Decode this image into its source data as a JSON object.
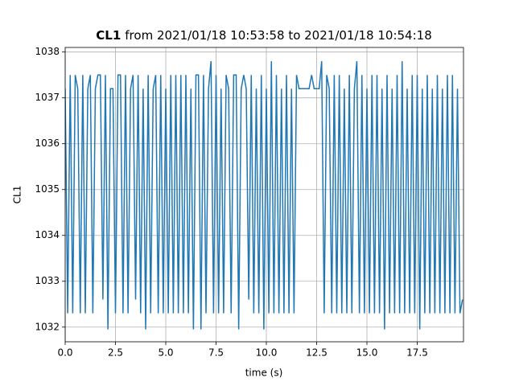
{
  "chart_data": {
    "type": "line",
    "title_bold": "CL1",
    "title_rest": "from 2021/01/18 10:53:58 to 2021/01/18 10:54:18",
    "xlabel": "time (s)",
    "ylabel": "CL1",
    "color": "#1f77b4",
    "grid": true,
    "xlim": [
      0,
      19.8
    ],
    "ylim": [
      1031.68,
      1038.1
    ],
    "xticks": [
      {
        "value": 0,
        "label": "0.0"
      },
      2.5,
      {
        "value": 5,
        "label": "5.0"
      },
      7.5,
      {
        "value": 10,
        "label": "10.0"
      },
      12.5,
      {
        "value": 15,
        "label": "15.0"
      },
      17.5
    ],
    "yticks": [
      1032,
      1033,
      1034,
      1035,
      1036,
      1037,
      1038
    ],
    "x": [
      0,
      0.125,
      0.25,
      0.375,
      0.5,
      0.625,
      0.75,
      0.875,
      1,
      1.125,
      1.25,
      1.375,
      1.5,
      1.625,
      1.75,
      1.875,
      2,
      2.125,
      2.25,
      2.375,
      2.5,
      2.625,
      2.75,
      2.875,
      3,
      3.125,
      3.25,
      3.375,
      3.5,
      3.625,
      3.75,
      3.875,
      4,
      4.125,
      4.25,
      4.375,
      4.5,
      4.625,
      4.75,
      4.875,
      5,
      5.125,
      5.25,
      5.375,
      5.5,
      5.625,
      5.75,
      5.875,
      6,
      6.125,
      6.25,
      6.375,
      6.5,
      6.625,
      6.75,
      6.875,
      7,
      7.125,
      7.25,
      7.375,
      7.5,
      7.625,
      7.75,
      7.875,
      8,
      8.125,
      8.25,
      8.375,
      8.5,
      8.625,
      8.75,
      8.875,
      9,
      9.125,
      9.25,
      9.375,
      9.5,
      9.625,
      9.75,
      9.875,
      10,
      10.125,
      10.25,
      10.375,
      10.5,
      10.625,
      10.75,
      10.875,
      11,
      11.125,
      11.25,
      11.375,
      11.5,
      11.625,
      11.75,
      11.875,
      12,
      12.125,
      12.25,
      12.375,
      12.5,
      12.625,
      12.75,
      12.875,
      13,
      13.125,
      13.25,
      13.375,
      13.5,
      13.625,
      13.75,
      13.875,
      14,
      14.125,
      14.25,
      14.375,
      14.5,
      14.625,
      14.75,
      14.875,
      15,
      15.125,
      15.25,
      15.375,
      15.5,
      15.625,
      15.75,
      15.875,
      16,
      16.125,
      16.25,
      16.375,
      16.5,
      16.625,
      16.75,
      16.875,
      17,
      17.125,
      17.25,
      17.375,
      17.5,
      17.625,
      17.75,
      17.875,
      18,
      18.125,
      18.25,
      18.375,
      18.5,
      18.625,
      18.75,
      18.875,
      19,
      19.125,
      19.25,
      19.375,
      19.5,
      19.625,
      19.75
    ],
    "values": [
      1037.2,
      1032.3,
      1037.5,
      1032.3,
      1037.5,
      1037.2,
      1032.3,
      1037.5,
      1032.3,
      1037.2,
      1037.5,
      1032.3,
      1037.2,
      1037.5,
      1037.5,
      1032.6,
      1037.5,
      1031.95,
      1037.2,
      1037.2,
      1032.3,
      1037.5,
      1037.5,
      1032.3,
      1037.5,
      1032.3,
      1037.2,
      1037.5,
      1032.6,
      1037.5,
      1032.3,
      1037.2,
      1031.95,
      1037.5,
      1032.3,
      1037.2,
      1037.5,
      1032.3,
      1037.5,
      1032.3,
      1037.2,
      1032.3,
      1037.5,
      1032.3,
      1037.5,
      1032.3,
      1037.5,
      1032.3,
      1037.5,
      1032.3,
      1037.2,
      1031.95,
      1037.5,
      1037.5,
      1031.95,
      1037.5,
      1032.3,
      1037.2,
      1037.8,
      1032.3,
      1037.5,
      1032.3,
      1037.2,
      1032.3,
      1037.5,
      1037.2,
      1032.3,
      1037.5,
      1037.5,
      1031.95,
      1037.2,
      1037.5,
      1037.2,
      1032.6,
      1037.5,
      1032.3,
      1037.2,
      1032.3,
      1037.5,
      1031.95,
      1037.2,
      1032.3,
      1037.8,
      1032.3,
      1037.5,
      1032.3,
      1037.2,
      1032.3,
      1037.5,
      1032.3,
      1037.2,
      1032.3,
      1037.5,
      1037.2,
      1037.2,
      1037.2,
      1037.2,
      1037.2,
      1037.5,
      1037.2,
      1037.2,
      1037.2,
      1037.8,
      1032.3,
      1037.5,
      1037.2,
      1032.3,
      1037.5,
      1032.3,
      1037.5,
      1032.3,
      1037.2,
      1032.3,
      1037.5,
      1032.3,
      1037.2,
      1037.8,
      1032.3,
      1037.5,
      1032.3,
      1037.2,
      1032.3,
      1037.5,
      1032.3,
      1037.5,
      1032.3,
      1037.2,
      1031.95,
      1037.5,
      1032.3,
      1037.2,
      1032.3,
      1037.5,
      1032.3,
      1037.8,
      1032.3,
      1037.2,
      1032.3,
      1037.5,
      1032.3,
      1037.5,
      1031.95,
      1037.2,
      1032.3,
      1037.5,
      1032.3,
      1037.2,
      1032.3,
      1037.5,
      1032.3,
      1037.2,
      1032.3,
      1037.5,
      1032.3,
      1037.5,
      1032.3,
      1037.2,
      1032.3,
      1032.6
    ]
  }
}
